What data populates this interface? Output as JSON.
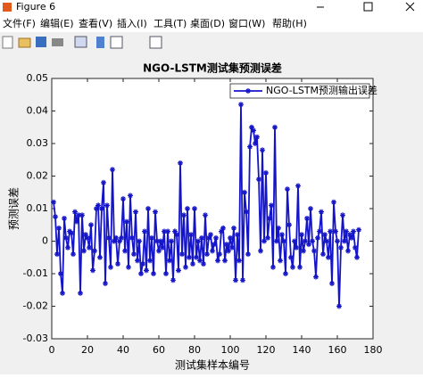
{
  "window": {
    "title": "Figure 6",
    "menu": [
      "文件(F)",
      "编辑(E)",
      "查看(V)",
      "插入(I)",
      "工具(T)",
      "桌面(D)",
      "窗口(W)",
      "帮助(H)"
    ]
  },
  "chart_data": {
    "type": "line",
    "title": "NGO-LSTM测试集预测误差",
    "xlabel": "测试集样本编号",
    "ylabel": "预测误差",
    "x": [
      1,
      2,
      3,
      4,
      5,
      6,
      7,
      8,
      9,
      10,
      11,
      12,
      13,
      14,
      15,
      16,
      17,
      18,
      19,
      20,
      21,
      22,
      23,
      24,
      25,
      26,
      27,
      28,
      29,
      30,
      31,
      32,
      33,
      34,
      35,
      36,
      37,
      38,
      39,
      40,
      41,
      42,
      43,
      44,
      45,
      46,
      47,
      48,
      49,
      50,
      51,
      52,
      53,
      54,
      55,
      56,
      57,
      58,
      59,
      60,
      61,
      62,
      63,
      64,
      65,
      66,
      67,
      68,
      69,
      70,
      71,
      72,
      73,
      74,
      75,
      76,
      77,
      78,
      79,
      80,
      81,
      82,
      83,
      84,
      85,
      86,
      87,
      88,
      89,
      90,
      91,
      92,
      93,
      94,
      95,
      96,
      97,
      98,
      99,
      100,
      101,
      102,
      103,
      104,
      105,
      106,
      107,
      108,
      109,
      110,
      111,
      112,
      113,
      114,
      115,
      116,
      117,
      118,
      119,
      120,
      121,
      122,
      123,
      124,
      125,
      126,
      127,
      128,
      129,
      130,
      131,
      132,
      133,
      134,
      135,
      136,
      137,
      138,
      139,
      140,
      141,
      142,
      143,
      144,
      145,
      146,
      147,
      148,
      149,
      150,
      151,
      152,
      153,
      154,
      155,
      156,
      157,
      158,
      159,
      160,
      161,
      162,
      163,
      164,
      165,
      166,
      167,
      168,
      169,
      170,
      171,
      172
    ],
    "series": [
      {
        "name": "NGO-LSTM预测输出误差",
        "color": "#1414c8",
        "values": [
          0.012,
          0.0075,
          -0.004,
          0.004,
          -0.01,
          -0.016,
          0.007,
          0.001,
          -0.002,
          0.003,
          0.0025,
          -0.004,
          0.009,
          0.006,
          0.008,
          -0.016,
          0.008,
          -0.003,
          0.002,
          0.001,
          -0.002,
          0.005,
          -0.009,
          -0.003,
          0.01,
          0.011,
          -0.005,
          0.01,
          0.018,
          -0.013,
          0.011,
          0.001,
          -0.008,
          0.022,
          0.0,
          0.001,
          -0.007,
          0.0,
          0.001,
          0.013,
          -0.003,
          0.006,
          -0.008,
          0.014,
          0.001,
          -0.004,
          0.009,
          -0.006,
          0.0,
          -0.01,
          -0.007,
          0.003,
          -0.009,
          0.01,
          -0.006,
          0.001,
          -0.01,
          0.009,
          0.0,
          -0.003,
          0.0,
          -0.002,
          0.003,
          -0.01,
          0.003,
          -0.006,
          0.0,
          -0.012,
          0.003,
          0.002,
          -0.009,
          0.024,
          -0.004,
          0.008,
          -0.008,
          0.01,
          -0.005,
          0.002,
          -0.007,
          0.01,
          -0.005,
          0.0,
          -0.006,
          0.001,
          -0.007,
          0.008,
          -0.004,
          0.001,
          0.002,
          -0.003,
          -0.001,
          0.001,
          -0.006,
          -0.004,
          0.003,
          0.004,
          -0.006,
          -0.001,
          -0.003,
          0.001,
          -0.002,
          0.004,
          -0.012,
          0.002,
          -0.006,
          0.042,
          -0.012,
          0.015,
          0.009,
          -0.004,
          0.029,
          0.035,
          0.034,
          0.03,
          0.032,
          0.019,
          -0.003,
          0.028,
          0.0,
          0.021,
          0.001,
          0.007,
          0.011,
          -0.008,
          0.035,
          0.0,
          0.004,
          -0.006,
          0.002,
          0.0,
          -0.01,
          0.016,
          0.005,
          -0.005,
          -0.008,
          0.0,
          -0.002,
          0.017,
          -0.008,
          0.002,
          -0.003,
          0.0,
          0.007,
          -0.001,
          0.01,
          0.0,
          -0.003,
          -0.011,
          0.001,
          0.003,
          0.009,
          -0.004,
          0.002,
          0.0,
          -0.005,
          0.003,
          -0.013,
          0.012,
          0.003,
          0.0,
          -0.02,
          -0.002,
          0.008,
          0.0,
          0.003,
          -0.003,
          0.002,
          0.001,
          0.003,
          -0.002,
          -0.005,
          0.0035
        ]
      }
    ],
    "xlim": [
      0,
      180
    ],
    "xticks": [
      0,
      20,
      40,
      60,
      80,
      100,
      120,
      140,
      160,
      180
    ],
    "ylim": [
      -0.03,
      0.05
    ],
    "yticks": [
      -0.03,
      -0.02,
      -0.01,
      0,
      0.01,
      0.02,
      0.03,
      0.04,
      0.05
    ],
    "legend": "northeast",
    "grid": false
  }
}
